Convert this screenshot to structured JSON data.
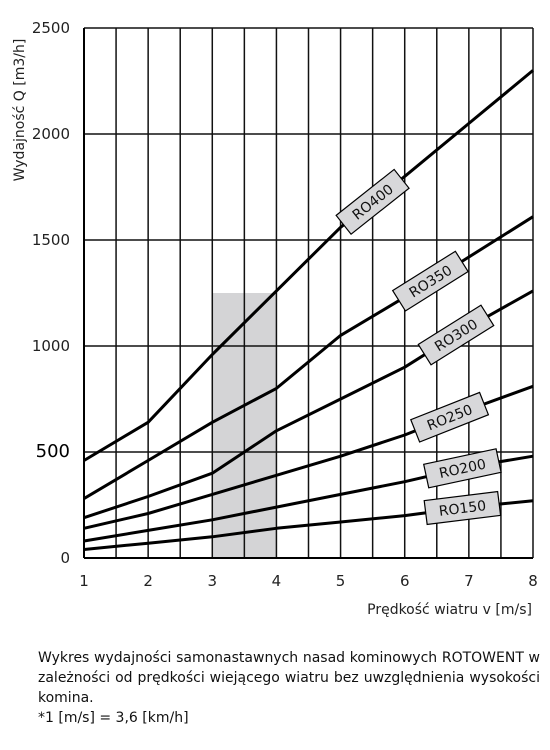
{
  "chart_data": {
    "type": "line",
    "xlabel": "Prędkość wiatru v [m/s]",
    "ylabel": "Wydajność Q [m3/h]",
    "xlim": [
      1,
      8
    ],
    "ylim": [
      0,
      2500
    ],
    "x_ticks": [
      "1",
      "2",
      "3",
      "4",
      "5",
      "6",
      "7",
      "8"
    ],
    "y_ticks": [
      "0",
      "500",
      "1000",
      "1500",
      "2000",
      "2500"
    ],
    "grid": "vertical lines at every 0.5 m/s, horizontal lines at every 500 m3/h",
    "shaded_region": {
      "x_from": 3,
      "x_to": 4,
      "color": "#d4d4d6"
    },
    "series": [
      {
        "name": "RO400",
        "x": [
          1,
          2,
          3,
          4,
          5,
          6,
          7,
          8
        ],
        "values": [
          460,
          640,
          960,
          1260,
          1560,
          1800,
          2050,
          2300
        ],
        "label_at_x": 5.5
      },
      {
        "name": "RO350",
        "x": [
          1,
          2,
          3,
          4,
          5,
          6,
          7,
          8
        ],
        "values": [
          280,
          460,
          640,
          800,
          1050,
          1230,
          1420,
          1610
        ],
        "label_at_x": 6.4
      },
      {
        "name": "RO300",
        "x": [
          1,
          2,
          3,
          4,
          5,
          6,
          7,
          8
        ],
        "values": [
          190,
          290,
          400,
          600,
          750,
          900,
          1090,
          1260
        ],
        "label_at_x": 6.8
      },
      {
        "name": "RO250",
        "x": [
          1,
          2,
          3,
          4,
          5,
          6,
          7,
          8
        ],
        "values": [
          140,
          210,
          300,
          390,
          480,
          580,
          700,
          810
        ],
        "label_at_x": 6.7
      },
      {
        "name": "RO200",
        "x": [
          1,
          2,
          3,
          4,
          5,
          6,
          7,
          8
        ],
        "values": [
          80,
          130,
          180,
          240,
          300,
          360,
          430,
          480
        ],
        "label_at_x": 6.9
      },
      {
        "name": "RO150",
        "x": [
          1,
          2,
          3,
          4,
          5,
          6,
          7,
          8
        ],
        "values": [
          40,
          70,
          100,
          140,
          170,
          200,
          240,
          270
        ],
        "label_at_x": 6.9
      }
    ]
  },
  "caption": {
    "description": "Wykres wydajności samonastawnych nasad kominowych ROTOWENT w zależności od prędkości wiejącego wiatru bez uwzględnienia wysokości komina.",
    "note": "*1 [m/s] = 3,6 [km/h]"
  }
}
